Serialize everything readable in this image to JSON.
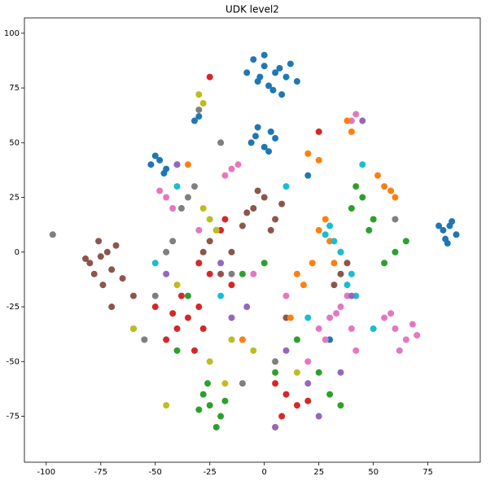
{
  "chart_data": {
    "type": "scatter",
    "title": "UDK level2",
    "xlim": [
      -110,
      99
    ],
    "ylim": [
      -96,
      107
    ],
    "xticks": [
      -100,
      -75,
      -50,
      -25,
      0,
      25,
      50,
      75
    ],
    "yticks": [
      -75,
      -50,
      -25,
      0,
      25,
      50,
      75,
      100
    ],
    "series": [
      {
        "color": "#1f77b4",
        "x": [
          -5,
          0,
          5,
          10,
          -3,
          2,
          7,
          12,
          -8,
          15,
          0,
          4,
          -2,
          8,
          -4,
          3,
          -6,
          0,
          5,
          -3,
          2,
          -40,
          -48,
          -45,
          -50,
          -52,
          -46,
          82,
          85,
          88,
          83,
          80,
          86,
          84,
          -30,
          -32,
          20,
          30
        ],
        "y": [
          88,
          85,
          82,
          80,
          78,
          76,
          84,
          86,
          82,
          78,
          90,
          74,
          80,
          72,
          53,
          55,
          50,
          48,
          52,
          57,
          46,
          40,
          42,
          38,
          44,
          40,
          36,
          10,
          12,
          8,
          6,
          12,
          14,
          4,
          62,
          60,
          35,
          -40
        ]
      },
      {
        "color": "#8c564b",
        "x": [
          -80,
          -75,
          -70,
          -72,
          -78,
          -68,
          -74,
          -82,
          -76,
          -65,
          -5,
          0,
          5,
          -8,
          3,
          8,
          -3,
          -10,
          -25,
          -28,
          -22,
          -30,
          -20,
          35,
          38,
          32,
          -70,
          -60,
          10,
          -15
        ],
        "y": [
          -5,
          -2,
          -8,
          0,
          -10,
          3,
          -15,
          -3,
          5,
          -12,
          20,
          25,
          15,
          18,
          10,
          22,
          28,
          12,
          5,
          0,
          10,
          -5,
          -10,
          -10,
          -5,
          -15,
          -25,
          -20,
          -30,
          0
        ]
      },
      {
        "color": "#e377c2",
        "x": [
          30,
          35,
          40,
          28,
          38,
          33,
          42,
          25,
          60,
          65,
          55,
          70,
          62,
          58,
          68,
          -15,
          -18,
          -12,
          40,
          42,
          -45,
          -48,
          -42,
          -30,
          10,
          20,
          -5
        ],
        "y": [
          -30,
          -25,
          -35,
          -40,
          -20,
          -28,
          -45,
          -35,
          -35,
          -40,
          -30,
          -38,
          -45,
          -28,
          -33,
          38,
          35,
          40,
          60,
          63,
          25,
          28,
          20,
          10,
          -20,
          -50,
          -10
        ]
      },
      {
        "color": "#2ca02c",
        "x": [
          -25,
          -20,
          -28,
          -22,
          -30,
          -18,
          -26,
          30,
          35,
          25,
          40,
          45,
          50,
          42,
          48,
          60,
          65,
          55,
          -10,
          -35,
          -40,
          5,
          15,
          -60,
          0
        ],
        "y": [
          -70,
          -75,
          -65,
          -80,
          -72,
          -68,
          -60,
          -65,
          -70,
          -55,
          20,
          25,
          15,
          30,
          10,
          0,
          5,
          -5,
          -10,
          -20,
          -45,
          -55,
          -40,
          -35,
          -5
        ]
      },
      {
        "color": "#d62728",
        "x": [
          -35,
          -40,
          -30,
          -45,
          -38,
          -32,
          -42,
          -28,
          10,
          15,
          5,
          20,
          8,
          -20,
          -18,
          -25,
          -50,
          -15,
          -25,
          -30,
          25
        ],
        "y": [
          -30,
          -35,
          -25,
          -40,
          -20,
          -45,
          -28,
          -35,
          -65,
          -70,
          -60,
          -68,
          -75,
          10,
          15,
          -10,
          -25,
          -15,
          80,
          -5,
          55
        ]
      },
      {
        "color": "#ff7f0e",
        "x": [
          25,
          30,
          28,
          35,
          32,
          55,
          60,
          52,
          58,
          20,
          25,
          15,
          18,
          22,
          12,
          40,
          -35,
          38,
          -10
        ],
        "y": [
          10,
          5,
          15,
          0,
          -5,
          30,
          25,
          35,
          28,
          45,
          42,
          -10,
          -15,
          -5,
          -30,
          55,
          40,
          60,
          -40
        ]
      },
      {
        "color": "#17becf",
        "x": [
          28,
          32,
          35,
          30,
          38,
          42,
          40,
          -50,
          -20,
          10,
          45,
          -40,
          20,
          50
        ],
        "y": [
          8,
          5,
          0,
          12,
          -15,
          -20,
          -10,
          -5,
          -20,
          30,
          40,
          30,
          -30,
          -35
        ]
      },
      {
        "color": "#bcbd22",
        "x": [
          -30,
          -28,
          -25,
          -22,
          -28,
          -15,
          -40,
          -60,
          -5,
          5,
          -45,
          -18,
          15,
          -25
        ],
        "y": [
          72,
          68,
          15,
          10,
          20,
          -40,
          -15,
          -35,
          -45,
          -80,
          -70,
          -60,
          -55,
          -50
        ]
      },
      {
        "color": "#7f7f7f",
        "x": [
          -35,
          -32,
          -38,
          -45,
          -42,
          -30,
          -20,
          -50,
          -55,
          5,
          -10,
          -15,
          60,
          -97
        ],
        "y": [
          25,
          30,
          20,
          0,
          5,
          65,
          50,
          -20,
          -40,
          -50,
          -60,
          -10,
          15,
          8
        ]
      },
      {
        "color": "#9467bd",
        "x": [
          -40,
          -45,
          45,
          40,
          -15,
          10,
          20,
          25,
          -20,
          35,
          5,
          -8
        ],
        "y": [
          40,
          -10,
          60,
          -20,
          -30,
          -45,
          -60,
          -75,
          -5,
          -55,
          -80,
          -25
        ]
      }
    ]
  }
}
